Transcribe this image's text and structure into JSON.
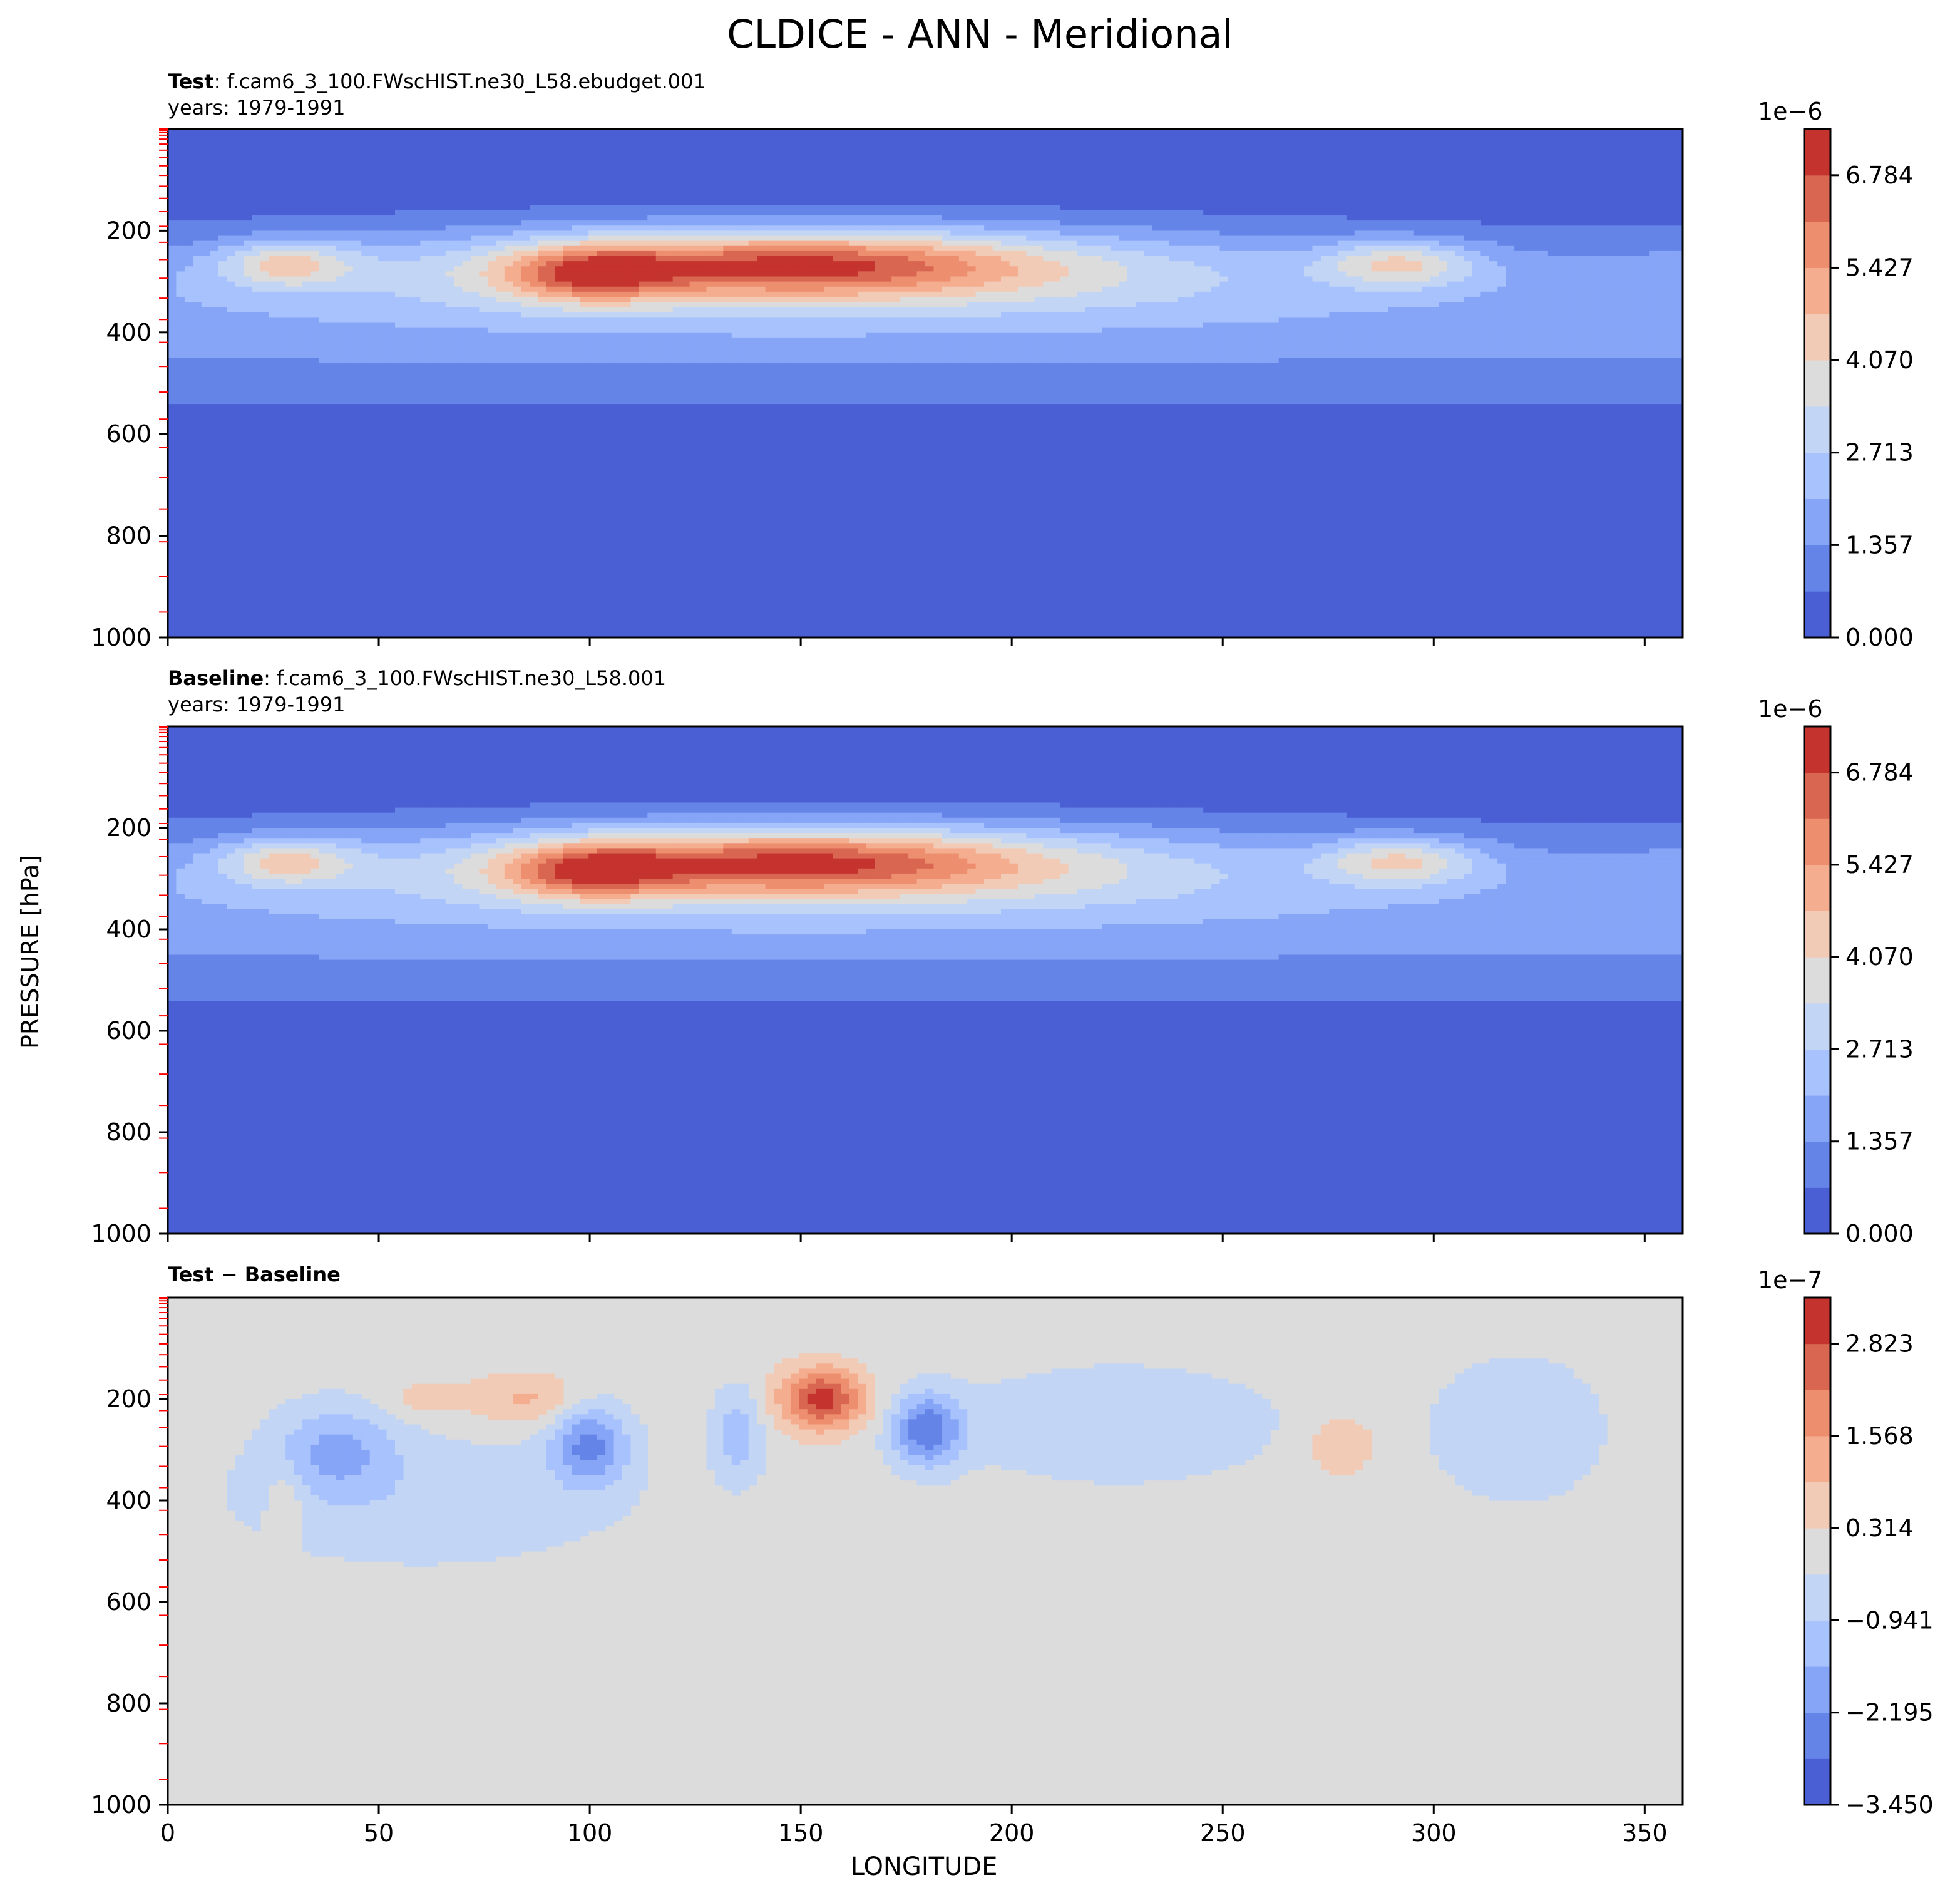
{
  "title": "CLDICE - ANN - Meridional",
  "ylabel": "PRESSURE [hPa]",
  "xlabel": "LONGITUDE",
  "chart_data": [
    {
      "type": "heatmap",
      "panel": "test",
      "subtitle_bold": "Test",
      "subtitle_rest": ": f.cam6_3_100.FWscHIST.ne30_L58.ebudget.001",
      "years": "years: 1979-1991",
      "xlim": [
        0,
        359
      ],
      "ylim": [
        1000,
        0
      ],
      "y_ticks": [
        "200",
        "400",
        "600",
        "800",
        "1000"
      ],
      "x_ticks": [],
      "colorbar_exponent": "1e−6",
      "colorbar_ticks": [
        "0.000",
        "1.357",
        "2.713",
        "4.070",
        "5.427",
        "6.784"
      ],
      "levels_min": 0.0,
      "levels_max": 7.46,
      "n_levels": 11,
      "features": [
        {
          "lon": 155,
          "p": 270,
          "value": 7.3
        },
        {
          "lon": 100,
          "p": 285,
          "value": 6.8
        },
        {
          "lon": 28,
          "p": 265,
          "value": 5.0
        },
        {
          "lon": 292,
          "p": 265,
          "value": 5.2
        }
      ]
    },
    {
      "type": "heatmap",
      "panel": "baseline",
      "subtitle_bold": "Baseline",
      "subtitle_rest": ": f.cam6_3_100.FWscHIST.ne30_L58.001",
      "years": "years: 1979-1991",
      "xlim": [
        0,
        359
      ],
      "ylim": [
        1000,
        0
      ],
      "y_ticks": [
        "200",
        "400",
        "600",
        "800",
        "1000"
      ],
      "x_ticks": [],
      "colorbar_exponent": "1e−6",
      "colorbar_ticks": [
        "0.000",
        "1.357",
        "2.713",
        "4.070",
        "5.427",
        "6.784"
      ],
      "levels_min": 0.0,
      "levels_max": 7.46,
      "n_levels": 11,
      "features": [
        {
          "lon": 155,
          "p": 270,
          "value": 7.3
        },
        {
          "lon": 100,
          "p": 285,
          "value": 6.9
        },
        {
          "lon": 28,
          "p": 265,
          "value": 5.0
        },
        {
          "lon": 292,
          "p": 265,
          "value": 5.2
        }
      ]
    },
    {
      "type": "heatmap",
      "panel": "difference",
      "subtitle_bold": "Test − Baseline",
      "subtitle_rest": "",
      "years": "",
      "xlim": [
        0,
        359
      ],
      "ylim": [
        1000,
        0
      ],
      "y_ticks": [
        "200",
        "400",
        "600",
        "800",
        "1000"
      ],
      "x_ticks": [
        "0",
        "50",
        "100",
        "150",
        "200",
        "250",
        "300",
        "350"
      ],
      "colorbar_exponent": "1e−7",
      "colorbar_ticks": [
        "−3.450",
        "−2.195",
        "−0.941",
        "0.314",
        "1.568",
        "2.823"
      ],
      "levels_min": -3.45,
      "levels_max": 3.45,
      "n_levels": 11,
      "features": [
        {
          "lon": 155,
          "p": 200,
          "value": 3.2
        },
        {
          "lon": 180,
          "p": 260,
          "value": -2.6
        },
        {
          "lon": 100,
          "p": 290,
          "value": -2.3
        },
        {
          "lon": 40,
          "p": 300,
          "value": -1.6
        },
        {
          "lon": 278,
          "p": 290,
          "value": 1.0
        },
        {
          "lon": 85,
          "p": 200,
          "value": 1.1
        }
      ]
    }
  ],
  "colors": {
    "colormap": [
      "#4a5fd4",
      "#6584e8",
      "#86a5f7",
      "#a7c2fd",
      "#c3d5f4",
      "#dcdcdc",
      "#f2cbb7",
      "#f5ad8f",
      "#ed8e6e",
      "#d96651",
      "#c5332f"
    ]
  }
}
